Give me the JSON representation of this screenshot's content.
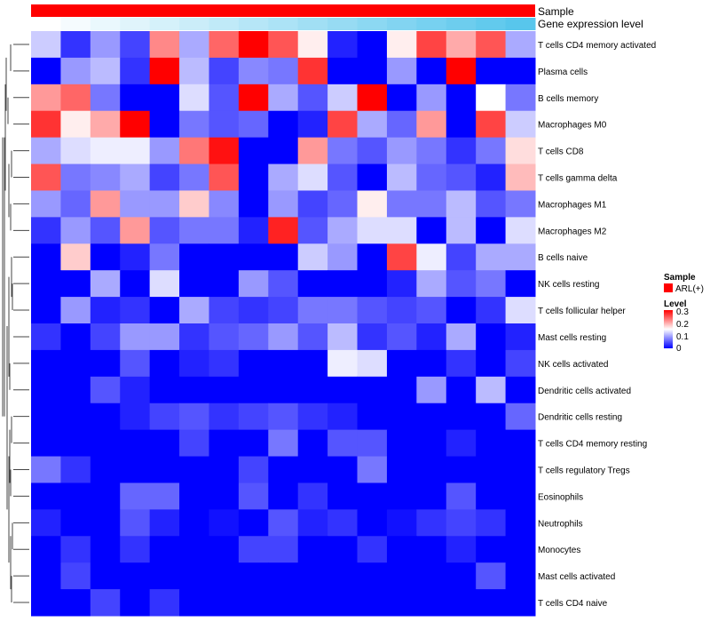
{
  "chart_data": {
    "type": "heatmap",
    "annotations": {
      "top_row_label": "Sample",
      "second_row_label": "Gene expression level",
      "sample_color": "#ff0000",
      "expression_gradient": [
        "#ffffff",
        "#58c6ec"
      ]
    },
    "columns_count": 17,
    "rows": [
      "T cells CD4 memory activated",
      "Plasma cells",
      "B cells memory",
      "Macrophages M0",
      "T cells CD8",
      "T cells gamma delta",
      "Macrophages M1",
      "Macrophages M2",
      "B cells naive",
      "NK cells resting",
      "T cells follicular helper",
      "Mast cells resting",
      "NK cells activated",
      "Dendritic cells activated",
      "Dendritic cells resting",
      "T cells CD4 memory resting",
      "T cells regulatory  Tregs",
      "Eosinophils",
      "Neutrophils",
      "Monocytes",
      "Mast cells activated",
      "T cells CD4 naive"
    ],
    "values": [
      [
        0.12,
        0.03,
        0.09,
        0.04,
        0.22,
        0.1,
        0.24,
        0.31,
        0.25,
        0.16,
        0.02,
        0.0,
        0.16,
        0.26,
        0.2,
        0.25,
        0.1
      ],
      [
        0.0,
        0.09,
        0.11,
        0.03,
        0.3,
        0.11,
        0.04,
        0.08,
        0.07,
        0.27,
        0.0,
        0.0,
        0.09,
        0.0,
        0.31,
        0.0,
        0.0
      ],
      [
        0.21,
        0.24,
        0.07,
        0.0,
        0.0,
        0.13,
        0.05,
        0.31,
        0.1,
        0.05,
        0.12,
        0.31,
        0.0,
        0.09,
        0.0,
        0.15,
        0.07
      ],
      [
        0.27,
        0.16,
        0.2,
        0.31,
        0.0,
        0.07,
        0.05,
        0.06,
        0.0,
        0.02,
        0.26,
        0.1,
        0.06,
        0.21,
        0.0,
        0.26,
        0.12
      ],
      [
        0.1,
        0.13,
        0.14,
        0.14,
        0.09,
        0.23,
        0.29,
        0.0,
        0.0,
        0.21,
        0.07,
        0.05,
        0.09,
        0.07,
        0.03,
        0.07,
        0.17
      ],
      [
        0.25,
        0.07,
        0.08,
        0.1,
        0.04,
        0.07,
        0.25,
        0.0,
        0.1,
        0.13,
        0.05,
        0.0,
        0.11,
        0.06,
        0.05,
        0.02,
        0.19
      ],
      [
        0.09,
        0.06,
        0.21,
        0.09,
        0.09,
        0.18,
        0.08,
        0.0,
        0.09,
        0.04,
        0.06,
        0.16,
        0.07,
        0.07,
        0.11,
        0.05,
        0.07
      ],
      [
        0.03,
        0.09,
        0.05,
        0.21,
        0.05,
        0.07,
        0.07,
        0.02,
        0.28,
        0.05,
        0.1,
        0.13,
        0.13,
        0.0,
        0.11,
        0.0,
        0.13
      ],
      [
        0.0,
        0.18,
        0.0,
        0.02,
        0.07,
        0.0,
        0.0,
        0.0,
        0.0,
        0.12,
        0.09,
        0.0,
        0.26,
        0.14,
        0.04,
        0.1,
        0.1
      ],
      [
        0.0,
        0.0,
        0.1,
        0.0,
        0.13,
        0.0,
        0.0,
        0.09,
        0.05,
        0.0,
        0.0,
        0.0,
        0.02,
        0.1,
        0.05,
        0.07,
        0.0
      ],
      [
        0.0,
        0.09,
        0.02,
        0.03,
        0.0,
        0.1,
        0.04,
        0.03,
        0.04,
        0.07,
        0.07,
        0.05,
        0.04,
        0.05,
        0.0,
        0.03,
        0.13
      ],
      [
        0.03,
        0.0,
        0.04,
        0.09,
        0.09,
        0.03,
        0.05,
        0.06,
        0.09,
        0.05,
        0.11,
        0.03,
        0.05,
        0.02,
        0.1,
        0.0,
        0.02
      ],
      [
        0.0,
        0.0,
        0.0,
        0.05,
        0.0,
        0.02,
        0.03,
        0.0,
        0.0,
        0.0,
        0.14,
        0.13,
        0.0,
        0.0,
        0.03,
        0.0,
        0.04
      ],
      [
        0.0,
        0.0,
        0.05,
        0.02,
        0.0,
        0.0,
        0.0,
        0.0,
        0.0,
        0.0,
        0.0,
        0.0,
        0.0,
        0.09,
        0.0,
        0.11,
        0.0
      ],
      [
        0.0,
        0.0,
        0.0,
        0.02,
        0.04,
        0.05,
        0.03,
        0.04,
        0.05,
        0.03,
        0.02,
        0.0,
        0.0,
        0.0,
        0.0,
        0.0,
        0.06
      ],
      [
        0.0,
        0.0,
        0.0,
        0.0,
        0.0,
        0.04,
        0.0,
        0.0,
        0.07,
        0.0,
        0.05,
        0.05,
        0.0,
        0.0,
        0.02,
        0.0,
        0.0
      ],
      [
        0.07,
        0.03,
        0.0,
        0.0,
        0.0,
        0.0,
        0.0,
        0.04,
        0.0,
        0.0,
        0.0,
        0.07,
        0.0,
        0.0,
        0.0,
        0.0,
        0.0
      ],
      [
        0.0,
        0.0,
        0.0,
        0.06,
        0.06,
        0.0,
        0.0,
        0.05,
        0.0,
        0.03,
        0.0,
        0.0,
        0.0,
        0.0,
        0.05,
        0.0,
        0.0
      ],
      [
        0.02,
        0.0,
        0.0,
        0.05,
        0.02,
        0.0,
        0.01,
        0.0,
        0.05,
        0.02,
        0.03,
        0.0,
        0.01,
        0.03,
        0.04,
        0.03,
        0.0
      ],
      [
        0.0,
        0.03,
        0.0,
        0.03,
        0.0,
        0.0,
        0.0,
        0.04,
        0.04,
        0.0,
        0.0,
        0.03,
        0.0,
        0.0,
        0.02,
        0.0,
        0.0
      ],
      [
        0.0,
        0.04,
        0.0,
        0.0,
        0.0,
        0.0,
        0.0,
        0.0,
        0.0,
        0.0,
        0.0,
        0.0,
        0.0,
        0.0,
        0.0,
        0.05,
        0.0
      ],
      [
        0.0,
        0.0,
        0.04,
        0.0,
        0.03,
        0.0,
        0.0,
        0.0,
        0.0,
        0.0,
        0.0,
        0.0,
        0.0,
        0.0,
        0.0,
        0.0,
        0.0
      ]
    ],
    "color_scale": {
      "min": 0,
      "mid": 0.15,
      "max": 0.3,
      "low_color": "#0000ff",
      "mid_color": "#ffffff",
      "high_color": "#ff0000"
    },
    "legend": {
      "sample_title": "Sample",
      "sample_entry": "ARL(+)",
      "level_title": "Level",
      "level_ticks": [
        "0.3",
        "0.2",
        "0.1",
        "0"
      ]
    }
  }
}
